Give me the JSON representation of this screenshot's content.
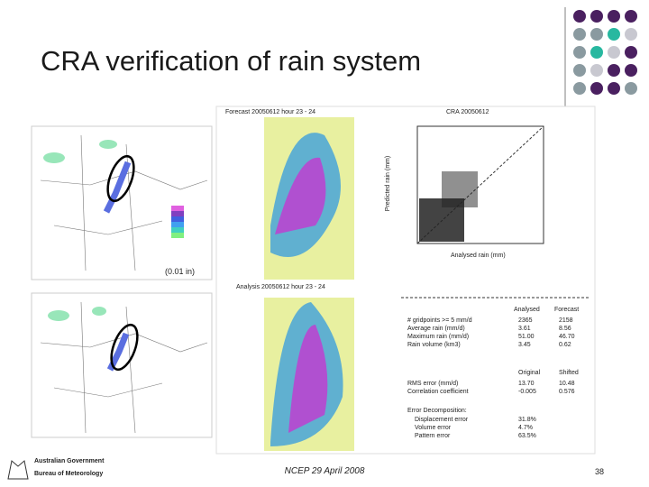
{
  "header": {
    "title": "CRA verification of rain system"
  },
  "left_maps": {
    "legend_unit": "(0.01 in)"
  },
  "panel": {
    "top_map_title": "Forecast 20050612 hour 23 - 24",
    "bottom_map_title": "Analysis 20050612 hour 23 - 24",
    "scatter_title": "CRA 20050612",
    "scatter_x_label": "Analysed rain (mm)",
    "scatter_y_label": "Predicted rain (mm)",
    "stats_header": [
      "Analysed",
      "Forecast"
    ],
    "stats_rows": [
      [
        "# gridpoints >= 5 mm/d",
        "2365",
        "2158"
      ],
      [
        "Average rain (mm/d)",
        "3.61",
        "8.56"
      ],
      [
        "Maximum rain (mm/d)",
        "51.00",
        "46.70"
      ],
      [
        "Rain volume (km3)",
        "3.45",
        "0.62"
      ]
    ],
    "errors_header": [
      "Original",
      "Shifted"
    ],
    "errors_rows": [
      [
        "RMS error (mm/d)",
        "13.70",
        "10.48"
      ],
      [
        "Correlation coefficient",
        "-0.005",
        "0.576"
      ]
    ],
    "decomposition_title": "Error Decomposition:",
    "decomposition_rows": [
      [
        "Displacement error",
        "31.8%"
      ],
      [
        "Volume error",
        "4.7%"
      ],
      [
        "Pattern error",
        "63.5%"
      ]
    ]
  },
  "footer": {
    "text": "NCEP 29 April 2008",
    "page": "38"
  },
  "logo": {
    "line1": "Australian Government",
    "line2": "Bureau of Meteorology"
  }
}
